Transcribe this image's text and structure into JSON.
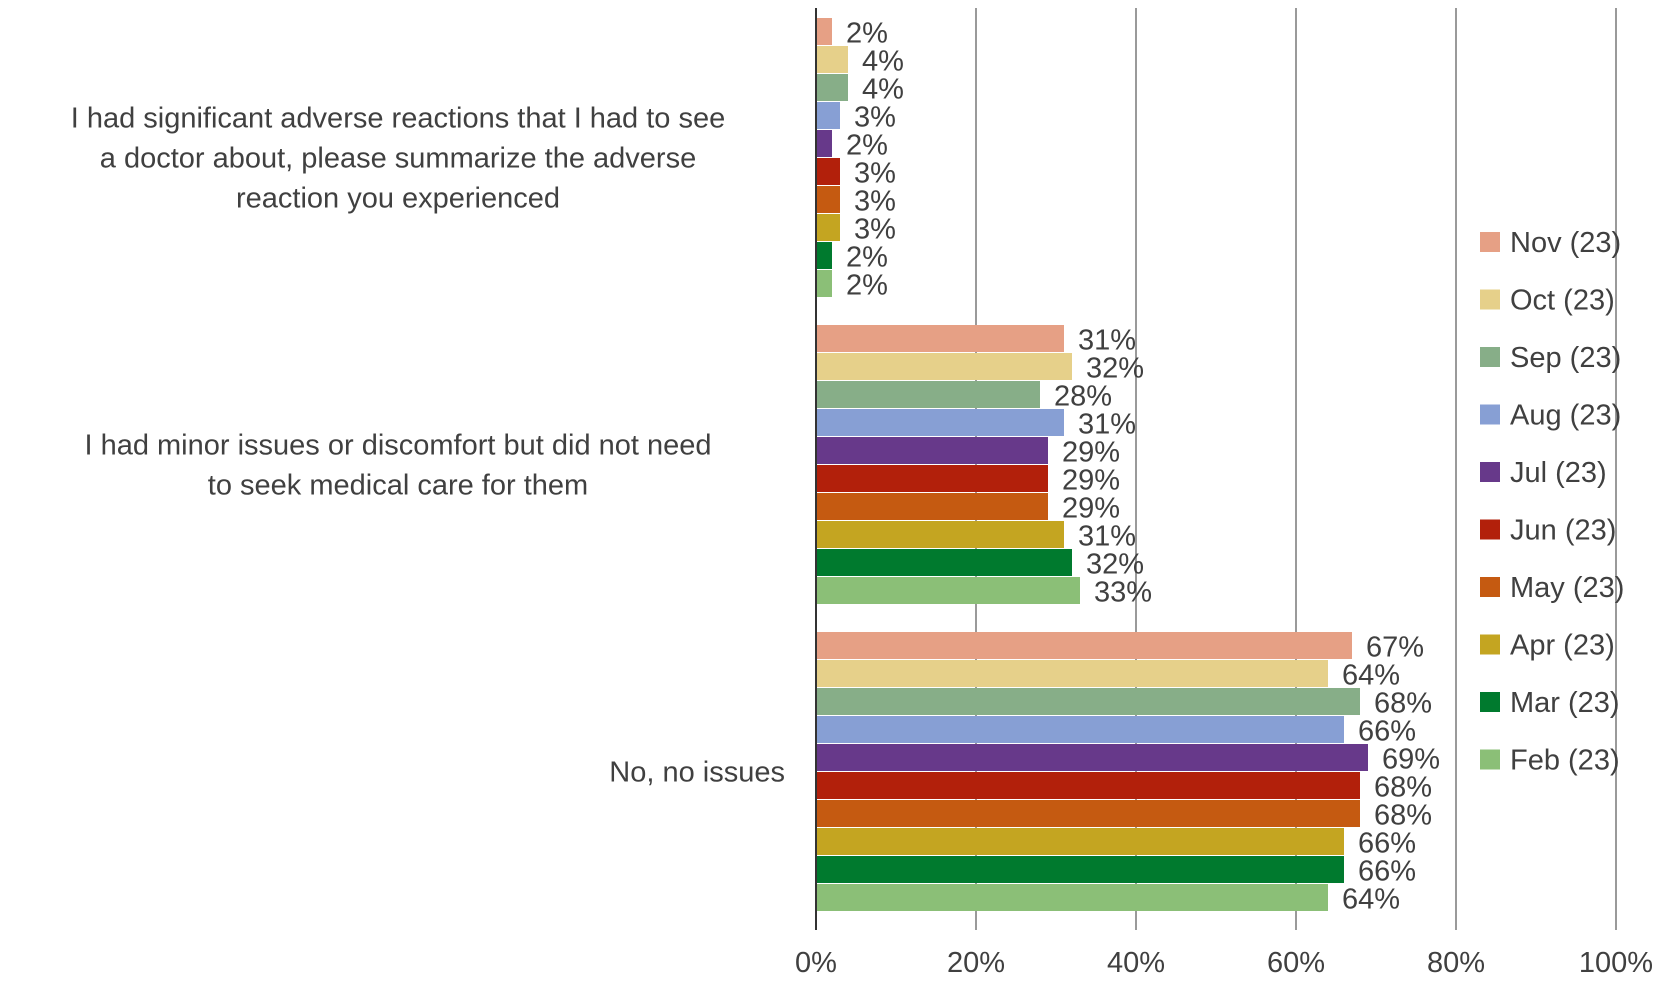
{
  "chart_data": {
    "type": "bar",
    "orientation": "horizontal",
    "categories": [
      "I had significant adverse reactions that I had to see a doctor about, please summarize the adverse reaction you experienced",
      "I had minor issues or discomfort but did not need to seek medical care for them",
      "No, no issues"
    ],
    "category_lines": [
      [
        "I had significant adverse reactions that I had to see",
        "a doctor about, please summarize the adverse",
        "reaction you experienced"
      ],
      [
        "I had minor issues or discomfort but did not need",
        "to seek medical care for them"
      ],
      [
        "No, no issues"
      ]
    ],
    "series": [
      {
        "name": "Nov (23)",
        "color": "#E6A085",
        "values": [
          2,
          31,
          67
        ]
      },
      {
        "name": "Oct (23)",
        "color": "#E6D08A",
        "values": [
          4,
          32,
          64
        ]
      },
      {
        "name": "Sep (23)",
        "color": "#87AE88",
        "values": [
          4,
          28,
          68
        ]
      },
      {
        "name": "Aug (23)",
        "color": "#879FD4",
        "values": [
          3,
          31,
          66
        ]
      },
      {
        "name": "Jul (23)",
        "color": "#67398A",
        "values": [
          2,
          29,
          69
        ]
      },
      {
        "name": "Jun (23)",
        "color": "#B2200B",
        "values": [
          3,
          29,
          68
        ]
      },
      {
        "name": "May (23)",
        "color": "#C55A11",
        "values": [
          3,
          29,
          68
        ]
      },
      {
        "name": "Apr (23)",
        "color": "#C4A521",
        "values": [
          3,
          31,
          66
        ]
      },
      {
        "name": "Mar (23)",
        "color": "#007A2E",
        "values": [
          2,
          32,
          66
        ]
      },
      {
        "name": "Feb (23)",
        "color": "#8BBF77",
        "values": [
          2,
          33,
          64
        ]
      }
    ],
    "value_labels": [
      [
        "2%",
        "31%",
        "67%"
      ],
      [
        "4%",
        "32%",
        "64%"
      ],
      [
        "4%",
        "28%",
        "68%"
      ],
      [
        "3%",
        "31%",
        "66%"
      ],
      [
        "2%",
        "29%",
        "69%"
      ],
      [
        "3%",
        "29%",
        "68%"
      ],
      [
        "3%",
        "29%",
        "68%"
      ],
      [
        "3%",
        "31%",
        "66%"
      ],
      [
        "2%",
        "32%",
        "66%"
      ],
      [
        "2%",
        "33%",
        "64%"
      ]
    ],
    "xlim": [
      0,
      100
    ],
    "x_ticks": [
      0,
      20,
      40,
      60,
      80,
      100
    ],
    "x_tick_labels": [
      "0%",
      "20%",
      "40%",
      "60%",
      "80%",
      "100%"
    ],
    "grid": "vertical",
    "legend_position": "right",
    "title": "",
    "xlabel": "",
    "ylabel": ""
  }
}
